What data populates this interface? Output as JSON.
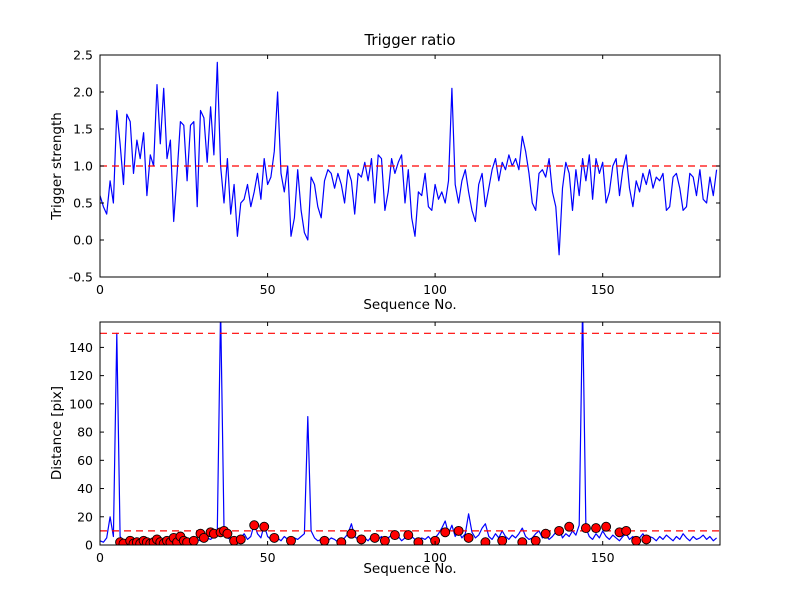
{
  "figure": {
    "background": "#ffffff"
  },
  "chart_data": [
    {
      "type": "line",
      "title": "Trigger ratio",
      "xlabel": "Sequence No.",
      "ylabel": "Trigger strength",
      "xlim": [
        0,
        185
      ],
      "ylim": [
        -0.5,
        2.5
      ],
      "xticks": [
        0,
        50,
        100,
        150
      ],
      "xticklabels": [
        "0",
        "50",
        "100",
        "150"
      ],
      "yticks": [
        -0.5,
        0.0,
        0.5,
        1.0,
        1.5,
        2.0,
        2.5
      ],
      "yticklabels": [
        "-0.5",
        "0.0",
        "0.5",
        "1.0",
        "1.5",
        "2.0",
        "2.5"
      ],
      "grid": false,
      "legend": "none",
      "series": [
        {
          "name": "trigger-strength-line",
          "type": "line",
          "color": "#0000ff",
          "x_start": 0,
          "x_step": 1,
          "y": [
            0.6,
            0.45,
            0.35,
            0.8,
            0.5,
            1.75,
            1.3,
            0.75,
            1.7,
            1.6,
            0.9,
            1.35,
            1.1,
            1.45,
            0.6,
            1.15,
            1.0,
            2.1,
            1.3,
            2.05,
            1.1,
            1.35,
            0.25,
            0.9,
            1.6,
            1.55,
            0.8,
            1.55,
            1.6,
            0.45,
            1.75,
            1.65,
            1.05,
            1.8,
            1.15,
            2.4,
            1.0,
            0.5,
            1.1,
            0.35,
            0.75,
            0.05,
            0.5,
            0.55,
            0.75,
            0.45,
            0.65,
            0.9,
            0.55,
            1.1,
            0.75,
            0.85,
            1.2,
            2.0,
            0.9,
            0.65,
            1.0,
            0.05,
            0.3,
            0.95,
            0.4,
            0.1,
            0.0,
            0.85,
            0.75,
            0.45,
            0.3,
            0.8,
            0.95,
            0.9,
            0.7,
            0.9,
            0.75,
            0.5,
            0.95,
            0.8,
            0.35,
            0.9,
            0.85,
            1.05,
            0.8,
            1.1,
            0.5,
            1.15,
            1.1,
            0.4,
            0.65,
            1.1,
            0.9,
            1.05,
            1.15,
            0.5,
            0.95,
            0.3,
            0.05,
            0.65,
            0.6,
            0.9,
            0.45,
            0.4,
            0.75,
            0.55,
            0.65,
            0.5,
            0.8,
            2.05,
            0.75,
            0.5,
            0.8,
            0.95,
            0.65,
            0.4,
            0.25,
            0.75,
            0.9,
            0.45,
            0.7,
            0.95,
            1.1,
            0.8,
            1.05,
            0.95,
            1.15,
            1.0,
            1.1,
            0.95,
            1.4,
            1.2,
            0.9,
            0.5,
            0.4,
            0.9,
            0.95,
            0.85,
            1.1,
            0.65,
            0.45,
            -0.2,
            0.7,
            1.05,
            0.9,
            0.4,
            0.95,
            0.6,
            1.1,
            0.8,
            1.15,
            0.55,
            1.1,
            0.9,
            1.05,
            0.5,
            0.65,
            1.0,
            1.1,
            0.6,
            0.95,
            1.15,
            0.7,
            0.45,
            0.8,
            0.65,
            0.9,
            0.75,
            0.95,
            0.7,
            0.85,
            0.8,
            0.9,
            0.4,
            0.45,
            0.85,
            0.9,
            0.7,
            0.4,
            0.45,
            0.9,
            0.85,
            0.6,
            0.95,
            0.55,
            0.5,
            0.85,
            0.6,
            0.95
          ]
        },
        {
          "name": "trigger-threshold-line",
          "type": "hline",
          "color": "#ff0000",
          "dash": true,
          "y_value": 1.0
        }
      ]
    },
    {
      "type": "line",
      "title": "",
      "xlabel": "Sequence No.",
      "ylabel": "Distance [pix]",
      "xlim": [
        0,
        185
      ],
      "ylim": [
        0,
        158
      ],
      "xticks": [
        0,
        50,
        100,
        150
      ],
      "xticklabels": [
        "0",
        "50",
        "100",
        "150"
      ],
      "yticks": [
        0,
        20,
        40,
        60,
        80,
        100,
        120,
        140
      ],
      "yticklabels": [
        "0",
        "20",
        "40",
        "60",
        "80",
        "100",
        "120",
        "140"
      ],
      "grid": false,
      "legend": "none",
      "series": [
        {
          "name": "distance-line",
          "type": "line",
          "color": "#0000ff",
          "x_start": 0,
          "x_step": 1,
          "y": [
            3,
            2,
            5,
            20,
            6,
            150,
            6,
            3,
            2,
            4,
            3,
            5,
            2,
            3,
            4,
            2,
            3,
            5,
            3,
            2,
            4,
            3,
            2,
            5,
            3,
            4,
            2,
            3,
            6,
            4,
            3,
            8,
            5,
            4,
            6,
            10,
            168,
            12,
            5,
            4,
            6,
            3,
            5,
            8,
            4,
            6,
            15,
            8,
            5,
            14,
            6,
            4,
            7,
            5,
            3,
            6,
            4,
            3,
            5,
            4,
            6,
            8,
            91,
            10,
            5,
            3,
            4,
            6,
            3,
            5,
            4,
            2,
            3,
            5,
            8,
            15,
            6,
            4,
            7,
            5,
            3,
            6,
            8,
            4,
            6,
            3,
            5,
            7,
            4,
            6,
            3,
            5,
            8,
            6,
            4,
            3,
            5,
            4,
            6,
            3,
            5,
            8,
            12,
            17,
            8,
            14,
            6,
            10,
            5,
            8,
            22,
            9,
            5,
            7,
            12,
            15,
            6,
            4,
            8,
            5,
            10,
            6,
            4,
            7,
            5,
            8,
            12,
            6,
            4,
            5,
            8,
            10,
            5,
            7,
            4,
            6,
            9,
            12,
            5,
            8,
            6,
            10,
            7,
            14,
            170,
            12,
            6,
            4,
            8,
            5,
            10,
            6,
            4,
            7,
            5,
            3,
            6,
            8,
            4,
            6,
            3,
            5,
            8,
            4,
            6,
            5,
            3,
            6,
            4,
            7,
            5,
            3,
            6,
            4,
            8,
            5,
            3,
            6,
            4,
            5,
            7,
            4,
            6,
            3,
            5
          ]
        },
        {
          "name": "distance-upper-threshold-line",
          "type": "hline",
          "color": "#ff0000",
          "dash": true,
          "y_value": 150
        },
        {
          "name": "distance-lower-threshold-line",
          "type": "hline",
          "color": "#ff0000",
          "dash": true,
          "y_value": 10
        },
        {
          "name": "matched-distance-points",
          "type": "scatter",
          "color": "#ff0000",
          "edge_color": "#000000",
          "points": [
            [
              6,
              2
            ],
            [
              7,
              1
            ],
            [
              9,
              3
            ],
            [
              10,
              1
            ],
            [
              11,
              2
            ],
            [
              12,
              1
            ],
            [
              13,
              3
            ],
            [
              14,
              2
            ],
            [
              15,
              1
            ],
            [
              16,
              2
            ],
            [
              17,
              4
            ],
            [
              18,
              2
            ],
            [
              19,
              1
            ],
            [
              20,
              3
            ],
            [
              21,
              2
            ],
            [
              22,
              5
            ],
            [
              23,
              2
            ],
            [
              24,
              6
            ],
            [
              25,
              3
            ],
            [
              26,
              2
            ],
            [
              28,
              3
            ],
            [
              30,
              8
            ],
            [
              31,
              5
            ],
            [
              33,
              9
            ],
            [
              34,
              8
            ],
            [
              36,
              9
            ],
            [
              37,
              10
            ],
            [
              38,
              8
            ],
            [
              40,
              3
            ],
            [
              42,
              4
            ],
            [
              46,
              14
            ],
            [
              49,
              13
            ],
            [
              52,
              5
            ],
            [
              57,
              3
            ],
            [
              67,
              3
            ],
            [
              72,
              2
            ],
            [
              75,
              8
            ],
            [
              78,
              4
            ],
            [
              82,
              5
            ],
            [
              85,
              3
            ],
            [
              88,
              7
            ],
            [
              92,
              7
            ],
            [
              95,
              2
            ],
            [
              100,
              3
            ],
            [
              103,
              9
            ],
            [
              107,
              10
            ],
            [
              110,
              5
            ],
            [
              115,
              2
            ],
            [
              120,
              3
            ],
            [
              126,
              2
            ],
            [
              130,
              3
            ],
            [
              133,
              8
            ],
            [
              137,
              10
            ],
            [
              140,
              13
            ],
            [
              145,
              12
            ],
            [
              148,
              12
            ],
            [
              151,
              13
            ],
            [
              155,
              9
            ],
            [
              157,
              10
            ],
            [
              160,
              3
            ],
            [
              163,
              4
            ]
          ]
        }
      ]
    }
  ]
}
